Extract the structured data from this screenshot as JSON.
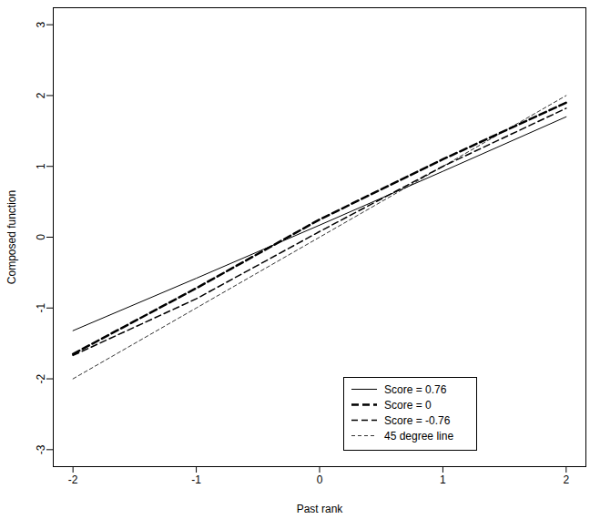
{
  "chart_data": {
    "type": "line",
    "x_label": "Past rank",
    "y_label": "Composed function",
    "x": [
      -2,
      -1,
      0,
      1,
      2
    ],
    "series": [
      {
        "name": "Score = 0.76",
        "color": "#000000",
        "line_style": "solid",
        "values": [
          -1.32,
          -0.58,
          0.17,
          0.93,
          1.7
        ]
      },
      {
        "name": "Score = 0",
        "color": "#000000",
        "line_style": "bold-dashed",
        "values": [
          -1.65,
          -0.72,
          0.25,
          1.1,
          1.9
        ]
      },
      {
        "name": "Score = -0.76",
        "color": "#000000",
        "line_style": "dashed",
        "values": [
          -1.67,
          -0.87,
          0.08,
          1.0,
          1.82
        ]
      },
      {
        "name": "45 degree line",
        "color": "#000000",
        "line_style": "fine-dashed",
        "values": [
          -2,
          -1,
          0,
          1,
          2
        ]
      }
    ],
    "xlim": [
      -2.16,
      2.16
    ],
    "ylim": [
      -3.24,
      3.24
    ],
    "xticks": [
      -2,
      -1,
      0,
      1,
      2
    ],
    "yticks": [
      -3,
      -2,
      -1,
      0,
      1,
      2,
      3
    ],
    "grid": false,
    "legend": "bottom-right"
  }
}
